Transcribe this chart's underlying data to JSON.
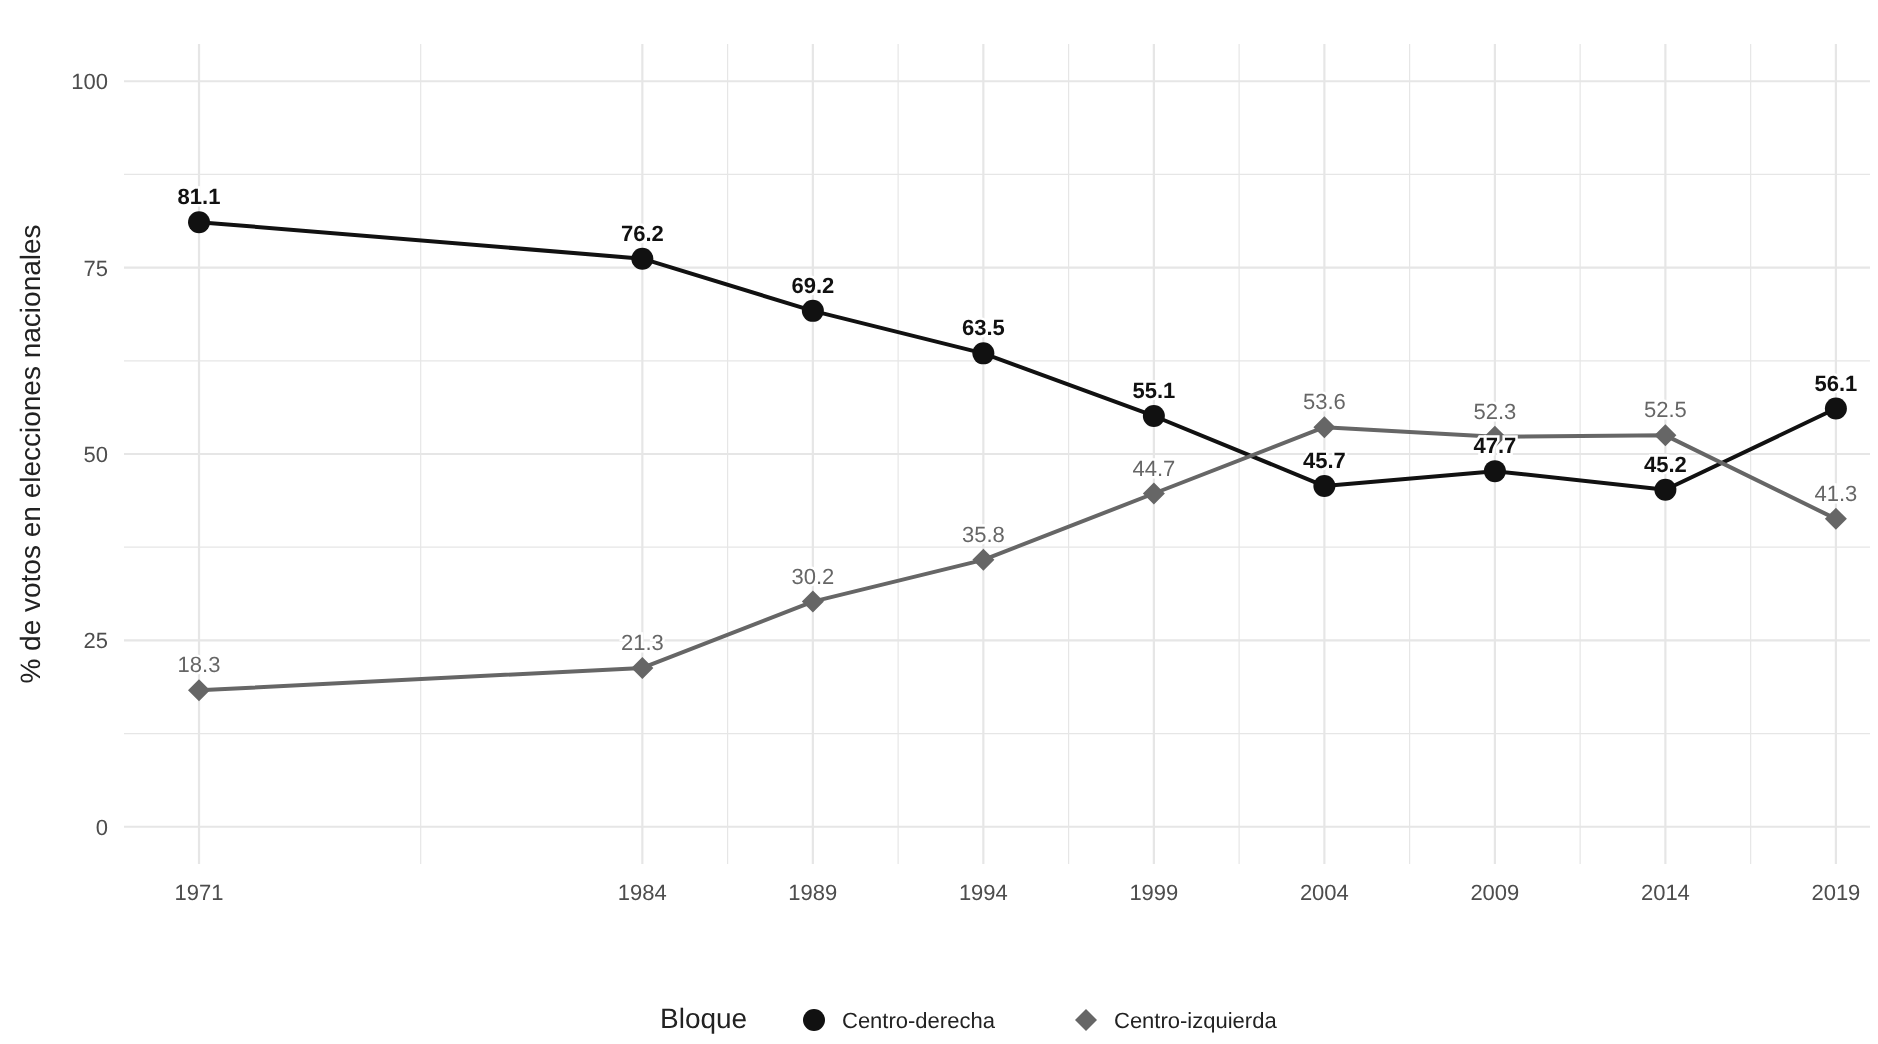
{
  "chart_data": {
    "type": "line",
    "ylabel": "% de votos en elecciones nacionales",
    "legend_title": "Bloque",
    "x": [
      1971,
      1984,
      1989,
      1994,
      1999,
      2004,
      2009,
      2014,
      2019
    ],
    "series": [
      {
        "name": "Centro-derecha",
        "color": "#111111",
        "marker": "circle",
        "values": [
          81.1,
          76.2,
          69.2,
          63.5,
          55.1,
          45.7,
          47.7,
          45.2,
          56.1
        ]
      },
      {
        "name": "Centro-izquierda",
        "color": "#666666",
        "marker": "diamond",
        "values": [
          18.3,
          21.3,
          30.2,
          35.8,
          44.7,
          53.6,
          52.3,
          52.5,
          41.3
        ]
      }
    ],
    "xlim": [
      1968.8,
      2020
    ],
    "xticks": [
      1971,
      {
        "value": 1977.5,
        "label": null
      },
      1984,
      {
        "value": 1986.5,
        "label": null
      },
      1989,
      {
        "value": 1991.5,
        "label": null
      },
      1994,
      {
        "value": 1996.5,
        "label": null
      },
      1999,
      {
        "value": 2001.5,
        "label": null
      },
      2004,
      {
        "value": 2006.5,
        "label": null
      },
      2009,
      {
        "value": 2011.5,
        "label": null
      },
      2014,
      {
        "value": 2016.5,
        "label": null
      },
      2019
    ],
    "ylim": [
      -5,
      105
    ],
    "yticks": [
      0,
      {
        "value": 12.5,
        "label": null
      },
      25,
      {
        "value": 37.5,
        "label": null
      },
      50,
      {
        "value": 62.5,
        "label": null
      },
      75,
      {
        "value": 87.5,
        "label": null
      },
      100
    ],
    "grid": true,
    "legend": "bottom",
    "data_labels": true,
    "line_style": "solid"
  }
}
